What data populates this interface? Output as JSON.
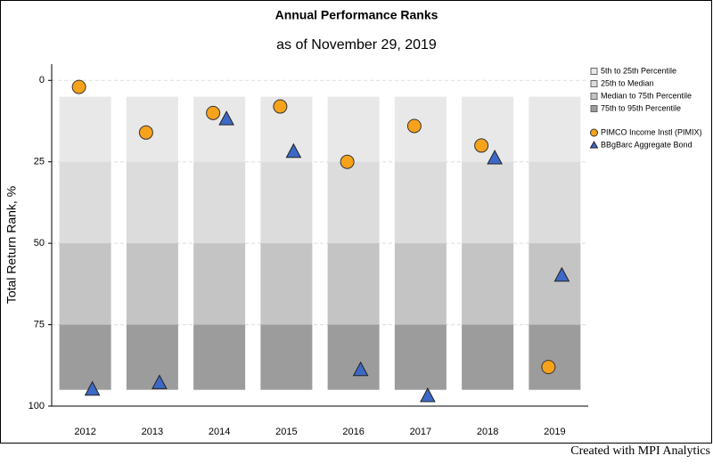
{
  "chart_data": {
    "type": "percentile-rank",
    "title": "Annual Performance Ranks",
    "subtitle": "as of November 29, 2019",
    "y_label": "Total Return Rank, %",
    "footer": "Created with MPI Analytics",
    "categories": [
      "2012",
      "2013",
      "2014",
      "2015",
      "2016",
      "2017",
      "2018",
      "2019"
    ],
    "ylim": [
      100,
      -5
    ],
    "yticks": [
      0,
      25,
      50,
      75,
      100
    ],
    "grid": true,
    "bands": [
      {
        "name": "5th to 25th Percentile",
        "color": "#e8e8e8",
        "range": [
          5,
          25
        ]
      },
      {
        "name": "25th to Median",
        "color": "#dcdcdc",
        "range": [
          25,
          50
        ]
      },
      {
        "name": "Median to 75th Percentile",
        "color": "#c4c4c4",
        "range": [
          50,
          75
        ]
      },
      {
        "name": "75th to 95th Percentile",
        "color": "#9c9c9c",
        "range": [
          75,
          95
        ]
      }
    ],
    "series": [
      {
        "name": "PIMCO Income Instl (PIMIX)",
        "color": "#f7a21b",
        "marker": "circle",
        "values": [
          2,
          16,
          10,
          8,
          25,
          14,
          20,
          88
        ]
      },
      {
        "name": "BBgBarc Aggregate Bond",
        "color": "#3d68c6",
        "marker": "triangle",
        "values": [
          95,
          93,
          12,
          22,
          89,
          97,
          24,
          60
        ]
      }
    ]
  }
}
